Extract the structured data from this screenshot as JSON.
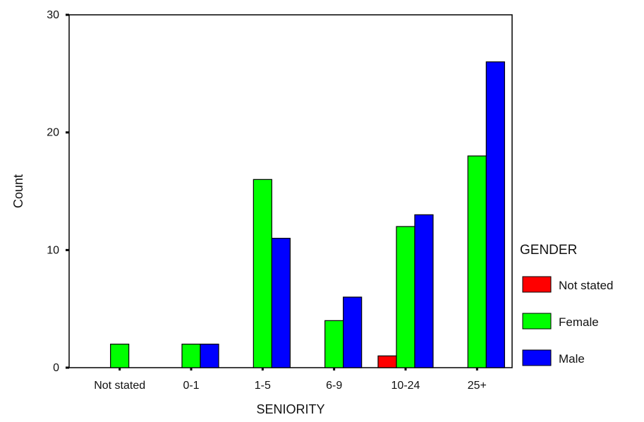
{
  "chart_data": {
    "type": "bar",
    "xlabel": "SENIORITY",
    "ylabel": "Count",
    "categories": [
      "Not stated",
      "0-1",
      "1-5",
      "6-9",
      "10-24",
      "25+"
    ],
    "series": [
      {
        "name": "Not stated",
        "color": "#ff0000",
        "values": [
          0,
          0,
          0,
          0,
          1,
          0
        ]
      },
      {
        "name": "Female",
        "color": "#00ff00",
        "values": [
          2,
          2,
          16,
          4,
          12,
          18
        ]
      },
      {
        "name": "Male",
        "color": "#0000ff",
        "values": [
          0,
          2,
          11,
          6,
          13,
          26
        ]
      }
    ],
    "ylim": [
      0,
      30
    ],
    "yticks": [
      0,
      10,
      20,
      30
    ],
    "grid": false,
    "legend": {
      "title": "GENDER",
      "placement": "right"
    }
  }
}
